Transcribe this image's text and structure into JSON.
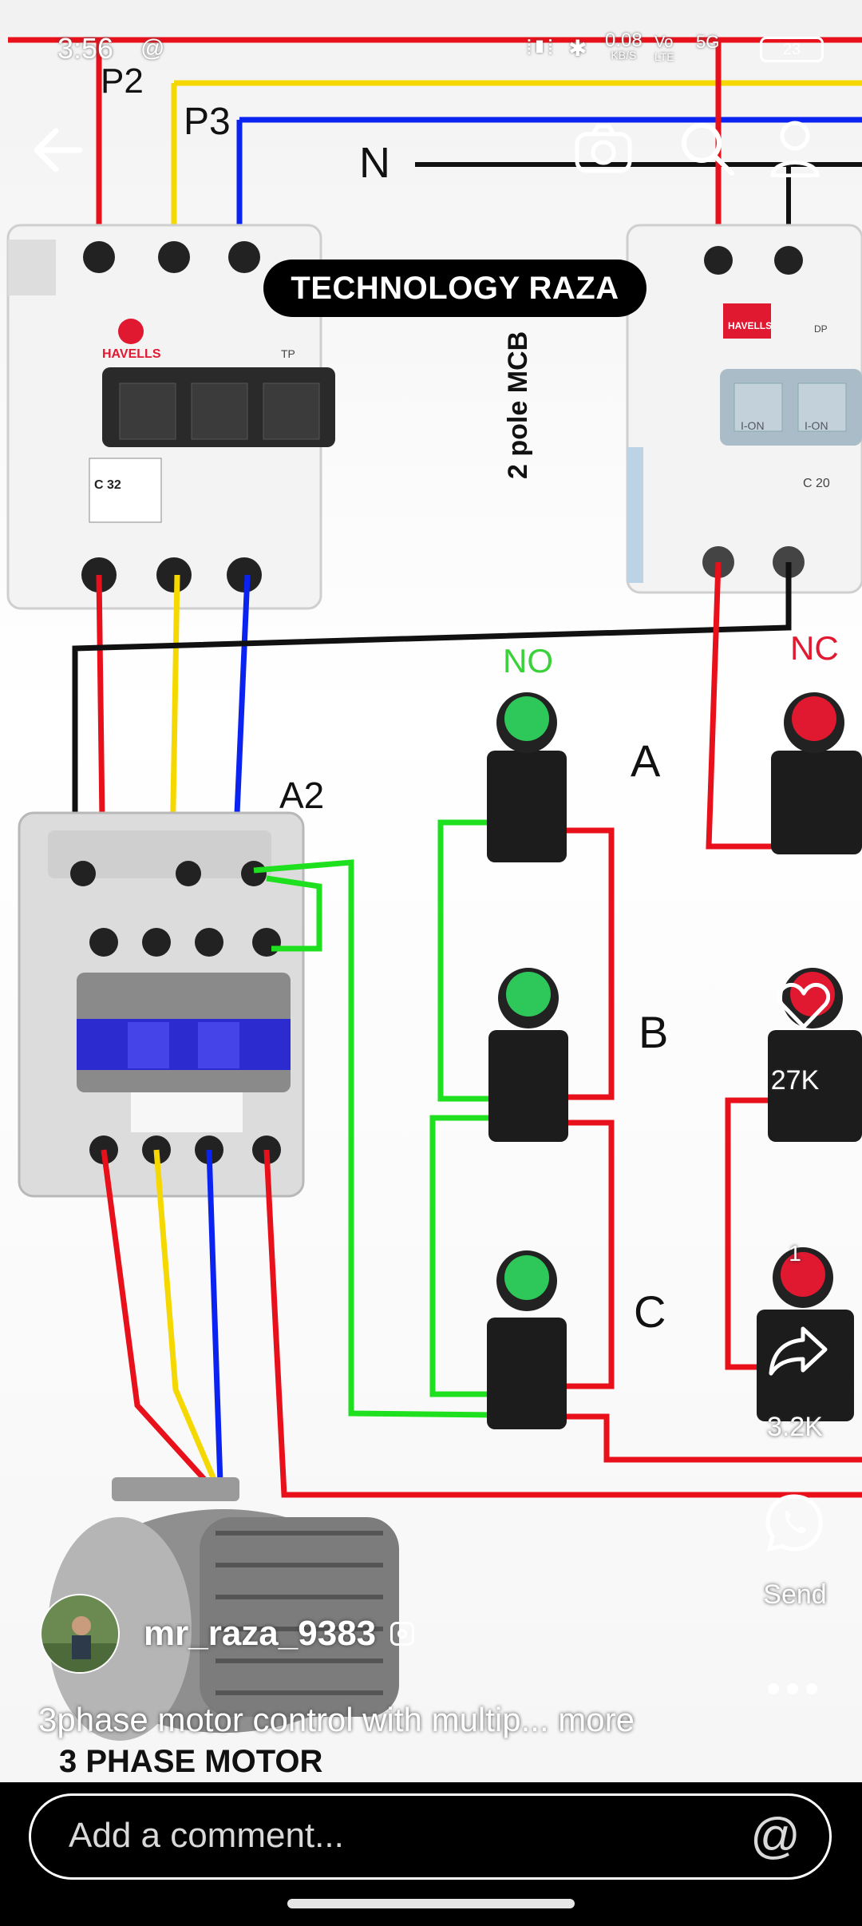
{
  "status_bar": {
    "time": "3:56",
    "net_speed": "0.08",
    "net_speed_unit": "KB/S",
    "network_top": "Vo",
    "network_bottom": "LTE",
    "network_gen": "5G",
    "battery": "23"
  },
  "video": {
    "overlay_title": "TECHNOLOGY RAZA",
    "diagram_labels": {
      "phase2": "P2",
      "phase3": "P3",
      "neutral": "N",
      "mcb_label": "2 pole MCB",
      "no_label": "NO",
      "nc_label": "NC",
      "a2_label": "A2",
      "switch_a": "A",
      "switch_b": "B",
      "switch_c": "C",
      "motor_label": "3 PHASE MOTOR",
      "breaker_brand": "HAVELLS",
      "breaker_3p_type": "TP",
      "breaker_2p_type": "DP",
      "breaker_3p_rating": "C 32",
      "breaker_2p_rating": "C 20",
      "breaker_on_text": "I-ON"
    }
  },
  "actions": {
    "likes_count": "27K",
    "shares_count": "3.2K",
    "send_label": "Send",
    "comments_badge": "1"
  },
  "post": {
    "author_name": "mr_raza_9383",
    "caption_text": "3phase motor control with multip...",
    "caption_more": "more"
  },
  "comment": {
    "placeholder": "Add a comment..."
  },
  "colors": {
    "red_wire": "#e8101a",
    "yellow_wire": "#f5d800",
    "blue_wire": "#0b23f0",
    "black_wire": "#111111",
    "green_wire": "#1ee01e",
    "no_label_color": "#3ad13a",
    "nc_label_color": "#e01830"
  },
  "icons": {
    "back": "arrow-left-icon",
    "camera": "camera-icon",
    "search": "search-icon",
    "profile": "person-icon",
    "like": "heart-icon",
    "share": "share-arrow-icon",
    "send": "whatsapp-icon",
    "more": "more-dots-icon",
    "mention": "at-icon"
  }
}
